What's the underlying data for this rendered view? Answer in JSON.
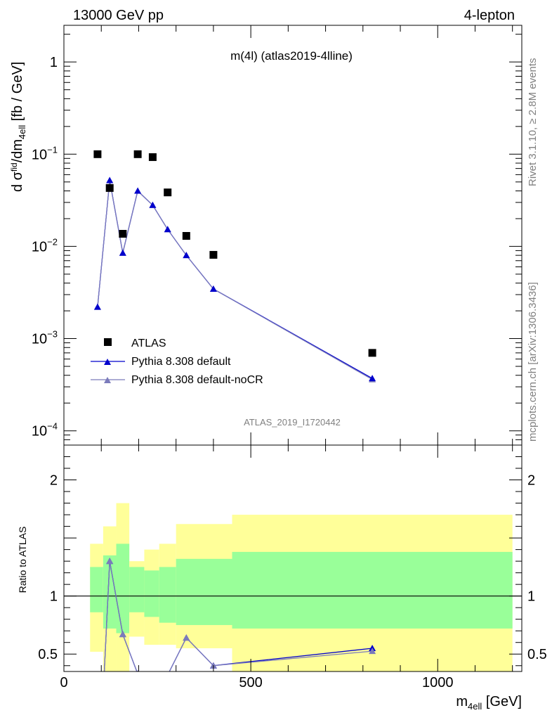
{
  "header": {
    "left": "13000 GeV pp",
    "right": "4-lepton"
  },
  "plot_title": "m(4l) (atlas2019-4lline)",
  "side_text": {
    "top": "Rivet 3.1.10, ≥ 2.8M events",
    "bottom": "mcplots.cern.ch [arXiv:1306.3436]"
  },
  "watermark": "ATLAS_2019_I1720442",
  "ratio_ylabel": "Ratio to ATLAS",
  "colors": {
    "data": "#000000",
    "pythia_default": "#0000cc",
    "pythia_nocr": "#7b7bbb",
    "band_inner": "#99ff99",
    "band_outer": "#ffff99"
  },
  "legend": [
    {
      "key": "data",
      "label": "ATLAS"
    },
    {
      "key": "pythia_default",
      "label": "Pythia 8.308 default"
    },
    {
      "key": "pythia_nocr",
      "label": "Pythia 8.308 default-noCR"
    }
  ],
  "chart_data": {
    "type": "scatter",
    "main": {
      "yscale": "log",
      "ylim": [
        7e-05,
        2.5
      ],
      "yticks": [
        {
          "value": 1,
          "base": "1",
          "exp": ""
        },
        {
          "value": 0.1,
          "base": "10",
          "exp": "−1"
        },
        {
          "value": 0.01,
          "base": "10",
          "exp": "−2"
        },
        {
          "value": 0.001,
          "base": "10",
          "exp": "−3"
        },
        {
          "value": 0.0001,
          "base": "10",
          "exp": "−4"
        }
      ],
      "ylabel_parts": {
        "a": "d σ",
        "b": "fid",
        "c": "4l",
        "d": "/dm",
        "e": "4ell",
        "f": " [fb / GeV]"
      }
    },
    "xlim": [
      0,
      1225
    ],
    "xticks": [
      0,
      500,
      1000
    ],
    "xlabel_parts": {
      "a": "m",
      "b": "4ell",
      "c": " [GeV]"
    },
    "data_points": [
      {
        "x": 90,
        "y": 0.1
      },
      {
        "x": 122.5,
        "y": 0.043
      },
      {
        "x": 157.5,
        "y": 0.0137
      },
      {
        "x": 197.5,
        "y": 0.1
      },
      {
        "x": 237.5,
        "y": 0.093
      },
      {
        "x": 277.5,
        "y": 0.0385
      },
      {
        "x": 327.5,
        "y": 0.013
      },
      {
        "x": 400,
        "y": 0.0081
      },
      {
        "x": 825,
        "y": 0.0007
      }
    ],
    "series": [
      {
        "key": "pythia_default",
        "name": "Pythia 8.308 default",
        "marker": "triangle",
        "x": [
          90,
          122.5,
          157.5,
          197.5,
          237.5,
          277.5,
          327.5,
          400,
          825
        ],
        "y": [
          0.0022,
          0.052,
          0.0085,
          0.04,
          0.028,
          0.0153,
          0.008,
          0.00345,
          0.00037
        ]
      },
      {
        "key": "pythia_nocr",
        "name": "Pythia 8.308 default-noCR",
        "marker": "triangle",
        "x": [
          90,
          122.5,
          157.5,
          197.5,
          237.5,
          277.5,
          327.5,
          400,
          825
        ],
        "y": [
          0.0022,
          0.052,
          0.0085,
          0.04,
          0.028,
          0.0153,
          0.008,
          0.00345,
          0.00036
        ]
      }
    ],
    "ratio": {
      "ylim": [
        0.35,
        2.3
      ],
      "yticks": [
        0.5,
        1,
        2
      ],
      "reference": 1,
      "bins": [
        {
          "x0": 70,
          "x1": 105,
          "inner": [
            0.86,
            1.25
          ],
          "outer": [
            0.52,
            1.45
          ]
        },
        {
          "x0": 105,
          "x1": 140,
          "inner": [
            0.72,
            1.35
          ],
          "outer": [
            0.3,
            1.6
          ]
        },
        {
          "x0": 140,
          "x1": 175,
          "inner": [
            0.68,
            1.45
          ],
          "outer": [
            0.3,
            1.8
          ]
        },
        {
          "x0": 175,
          "x1": 215,
          "inner": [
            0.86,
            1.25
          ],
          "outer": [
            0.65,
            1.3
          ]
        },
        {
          "x0": 215,
          "x1": 255,
          "inner": [
            0.82,
            1.22
          ],
          "outer": [
            0.58,
            1.4
          ]
        },
        {
          "x0": 255,
          "x1": 300,
          "inner": [
            0.77,
            1.25
          ],
          "outer": [
            0.58,
            1.45
          ]
        },
        {
          "x0": 300,
          "x1": 450,
          "inner": [
            0.75,
            1.32
          ],
          "outer": [
            0.55,
            1.62
          ]
        },
        {
          "x0": 450,
          "x1": 1200,
          "inner": [
            0.72,
            1.38
          ],
          "outer": [
            0.3,
            1.7
          ]
        }
      ],
      "series": [
        {
          "key": "pythia_default",
          "x": [
            105,
            122.5,
            157.5,
            197.5,
            277.5,
            327.5,
            400,
            825
          ],
          "y": [
            0.15,
            1.3,
            0.67,
            0.33,
            0.32,
            0.64,
            0.4,
            0.55
          ]
        },
        {
          "key": "pythia_nocr",
          "x": [
            105,
            122.5,
            157.5,
            197.5,
            277.5,
            327.5,
            400,
            825
          ],
          "y": [
            0.15,
            1.3,
            0.67,
            0.33,
            0.32,
            0.64,
            0.4,
            0.525
          ]
        }
      ]
    }
  }
}
